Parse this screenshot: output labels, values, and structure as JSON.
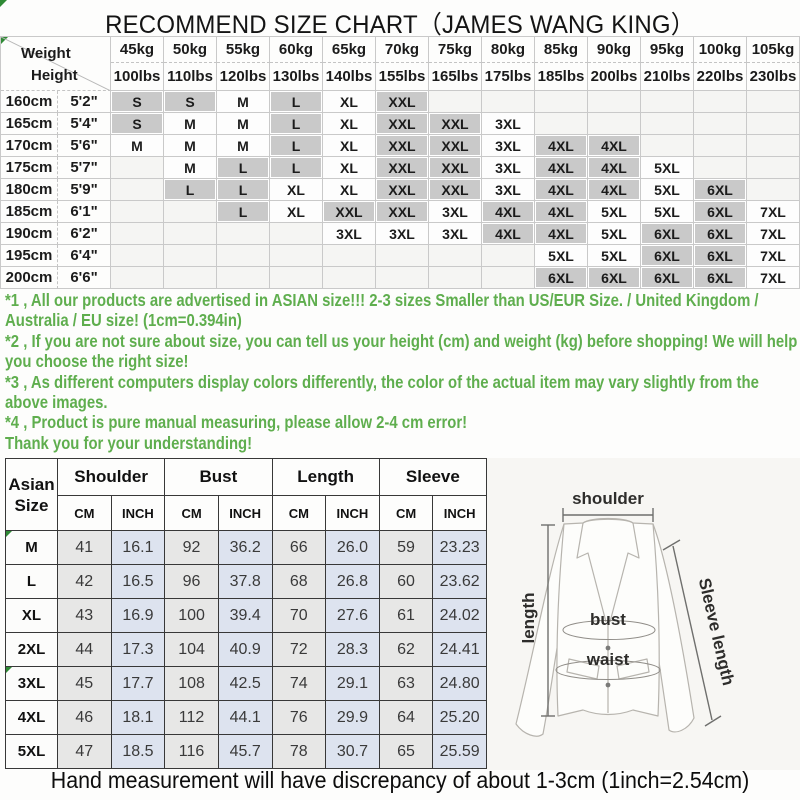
{
  "title": "RECOMMEND SIZE CHART（JAMES WANG KING）",
  "size_grid": {
    "corner": {
      "top": "Weight",
      "bottom": "Height"
    },
    "weights": [
      {
        "kg": "45kg",
        "lbs": "100lbs"
      },
      {
        "kg": "50kg",
        "lbs": "110lbs"
      },
      {
        "kg": "55kg",
        "lbs": "120lbs"
      },
      {
        "kg": "60kg",
        "lbs": "130lbs"
      },
      {
        "kg": "65kg",
        "lbs": "140lbs"
      },
      {
        "kg": "70kg",
        "lbs": "155lbs"
      },
      {
        "kg": "75kg",
        "lbs": "165lbs"
      },
      {
        "kg": "80kg",
        "lbs": "175lbs"
      },
      {
        "kg": "85kg",
        "lbs": "185lbs"
      },
      {
        "kg": "90kg",
        "lbs": "200lbs"
      },
      {
        "kg": "95kg",
        "lbs": "210lbs"
      },
      {
        "kg": "100kg",
        "lbs": "220lbs"
      },
      {
        "kg": "105kg",
        "lbs": "230lbs"
      }
    ],
    "rows": [
      {
        "cm": "160cm",
        "ft": "5'2\"",
        "cells": [
          "S",
          "S",
          "M",
          "L",
          "XL",
          "XXL",
          "",
          "",
          "",
          "",
          "",
          "",
          ""
        ]
      },
      {
        "cm": "165cm",
        "ft": "5'4\"",
        "cells": [
          "S",
          "M",
          "M",
          "L",
          "XL",
          "XXL",
          "XXL",
          "3XL",
          "",
          "",
          "",
          "",
          ""
        ]
      },
      {
        "cm": "170cm",
        "ft": "5'6\"",
        "cells": [
          "M",
          "M",
          "M",
          "L",
          "XL",
          "XXL",
          "XXL",
          "3XL",
          "4XL",
          "4XL",
          "",
          "",
          ""
        ]
      },
      {
        "cm": "175cm",
        "ft": "5'7\"",
        "cells": [
          "",
          "M",
          "L",
          "L",
          "XL",
          "XXL",
          "XXL",
          "3XL",
          "4XL",
          "4XL",
          "5XL",
          "",
          ""
        ]
      },
      {
        "cm": "180cm",
        "ft": "5'9\"",
        "cells": [
          "",
          "L",
          "L",
          "XL",
          "XL",
          "XXL",
          "XXL",
          "3XL",
          "4XL",
          "4XL",
          "5XL",
          "6XL",
          ""
        ]
      },
      {
        "cm": "185cm",
        "ft": "6'1\"",
        "cells": [
          "",
          "",
          "L",
          "XL",
          "XXL",
          "XXL",
          "3XL",
          "4XL",
          "4XL",
          "5XL",
          "5XL",
          "6XL",
          "7XL"
        ]
      },
      {
        "cm": "190cm",
        "ft": "6'2\"",
        "cells": [
          "",
          "",
          "",
          "",
          "3XL",
          "3XL",
          "3XL",
          "4XL",
          "4XL",
          "5XL",
          "6XL",
          "6XL",
          "7XL"
        ]
      },
      {
        "cm": "195cm",
        "ft": "6'4\"",
        "cells": [
          "",
          "",
          "",
          "",
          "",
          "",
          "",
          "",
          "5XL",
          "5XL",
          "6XL",
          "6XL",
          "7XL"
        ]
      },
      {
        "cm": "200cm",
        "ft": "6'6\"",
        "cells": [
          "",
          "",
          "",
          "",
          "",
          "",
          "",
          "",
          "6XL",
          "6XL",
          "6XL",
          "6XL",
          "7XL"
        ]
      }
    ],
    "shaded_sizes": [
      "S",
      "L",
      "XXL",
      "4XL",
      "6XL"
    ]
  },
  "notes": [
    {
      "text": "*1 , All our products are advertised in ASIAN size!!! 2-3 sizes Smaller than US/EUR Size. / United Kingdom / Australia / EU size! (1cm=0.394in)"
    },
    {
      "text": "*2 , If you are not sure about size, you can tell us your height (cm) and weight (kg) before shopping! We will help you choose the right size!"
    },
    {
      "text": "*3 , As different computers display colors differently, the color of the actual item may vary slightly from the above images."
    },
    {
      "text": "*4 , Product is pure manual measuring, please allow 2-4 cm error!"
    }
  ],
  "thanks": "Thank you for your understanding!",
  "measure_table": {
    "corner_line1": "Asian",
    "corner_line2": "Size",
    "groups": [
      "Shoulder",
      "Bust",
      "Length",
      "Sleeve"
    ],
    "units": [
      "CM",
      "INCH"
    ],
    "rows": [
      {
        "size": "M",
        "marker": true,
        "values": [
          "41",
          "16.1",
          "92",
          "36.2",
          "66",
          "26.0",
          "59",
          "23.23"
        ]
      },
      {
        "size": "L",
        "marker": false,
        "values": [
          "42",
          "16.5",
          "96",
          "37.8",
          "68",
          "26.8",
          "60",
          "23.62"
        ]
      },
      {
        "size": "XL",
        "marker": false,
        "values": [
          "43",
          "16.9",
          "100",
          "39.4",
          "70",
          "27.6",
          "61",
          "24.02"
        ]
      },
      {
        "size": "2XL",
        "marker": false,
        "values": [
          "44",
          "17.3",
          "104",
          "40.9",
          "72",
          "28.3",
          "62",
          "24.41"
        ]
      },
      {
        "size": "3XL",
        "marker": true,
        "values": [
          "45",
          "17.7",
          "108",
          "42.5",
          "74",
          "29.1",
          "63",
          "24.80"
        ]
      },
      {
        "size": "4XL",
        "marker": false,
        "values": [
          "46",
          "18.1",
          "112",
          "44.1",
          "76",
          "29.9",
          "64",
          "25.20"
        ]
      },
      {
        "size": "5XL",
        "marker": false,
        "values": [
          "47",
          "18.5",
          "116",
          "45.7",
          "78",
          "30.7",
          "65",
          "25.59"
        ]
      }
    ]
  },
  "diagram": {
    "labels": {
      "shoulder": "shoulder",
      "length": "length",
      "bust": "bust",
      "waist": "waist",
      "sleeve": "Sleeve length"
    }
  },
  "footer": "Hand measurement will have discrepancy of about 1-3cm (1inch=2.54cm)",
  "colors": {
    "note_green": "#5fae4e",
    "shade_gray": "#c9c9c9",
    "cm_cell": "#e7e7e6",
    "inch_cell": "#dde3ef",
    "marker_green": "#2f8a35"
  }
}
